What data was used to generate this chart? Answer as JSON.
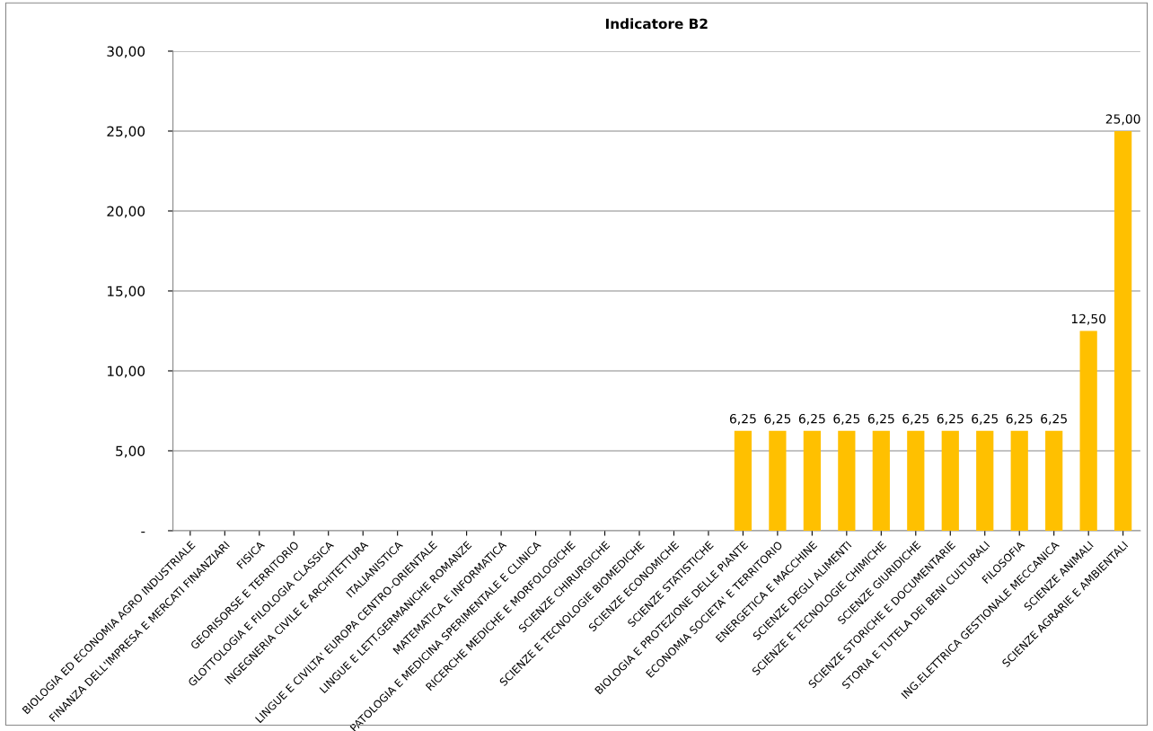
{
  "chart_data": {
    "type": "bar",
    "title": "Indicatore B2",
    "categories": [
      "BIOLOGIA ED ECONOMIA AGRO INDUSTRIALE",
      "FINANZA DELL'IMPRESA E MERCATI FINANZIARI",
      "FISICA",
      "GEORISORSE E TERRITORIO",
      "GLOTTOLOGIA E FILOLOGIA CLASSICA",
      "INGEGNERIA CIVILE E ARCHITETTURA",
      "ITALIANISTICA",
      "LINGUE E CIVILTA' EUROPA CENTRO-ORIENTALE",
      "LINGUE E LETT.GERMANICHE ROMANZE",
      "MATEMATICA E INFORMATICA",
      "PATOLOGIA E MEDICINA SPERIMENTALE E CLINICA",
      "RICERCHE MEDICHE E MORFOLOGICHE",
      "SCIENZE CHIRURGICHE",
      "SCIENZE E TECNOLOGIE BIOMEDICHE",
      "SCIENZE ECONOMICHE",
      "SCIENZE STATISTICHE",
      "BIOLOGIA E PROTEZIONE DELLE PIANTE",
      "ECONOMIA SOCIETA' E TERRITORIO",
      "ENERGETICA E MACCHINE",
      "SCIENZE DEGLI ALIMENTI",
      "SCIENZE E TECNOLOGIE CHIMICHE",
      "SCIENZE GIURIDICHE",
      "SCIENZE STORICHE E DOCUMENTARIE",
      "STORIA E TUTELA DEI BENI CULTURALI",
      "FILOSOFIA",
      "ING.ELETTRICA GESTIONALE MECCANICA",
      "SCIENZE ANIMALI",
      "SCIENZE AGRARIE E AMBIENTALI"
    ],
    "values": [
      0,
      0,
      0,
      0,
      0,
      0,
      0,
      0,
      0,
      0,
      0,
      0,
      0,
      0,
      0,
      0,
      6.25,
      6.25,
      6.25,
      6.25,
      6.25,
      6.25,
      6.25,
      6.25,
      6.25,
      6.25,
      12.5,
      25
    ],
    "value_labels": [
      null,
      null,
      null,
      null,
      null,
      null,
      null,
      null,
      null,
      null,
      null,
      null,
      null,
      null,
      null,
      null,
      "6,25",
      "6,25",
      "6,25",
      "6,25",
      "6,25",
      "6,25",
      "6,25",
      "6,25",
      "6,25",
      "6,25",
      "12,50",
      "25,00"
    ],
    "color": "#ffc000",
    "ylim": [
      0,
      30
    ],
    "yticks": [
      {
        "value": 0,
        "label": "-"
      },
      {
        "value": 5,
        "label": "5,00"
      },
      {
        "value": 10,
        "label": "10,00"
      },
      {
        "value": 15,
        "label": "15,00"
      },
      {
        "value": 20,
        "label": "20,00"
      },
      {
        "value": 25,
        "label": "25,00"
      },
      {
        "value": 30,
        "label": "30,00"
      }
    ],
    "grid": "y"
  }
}
